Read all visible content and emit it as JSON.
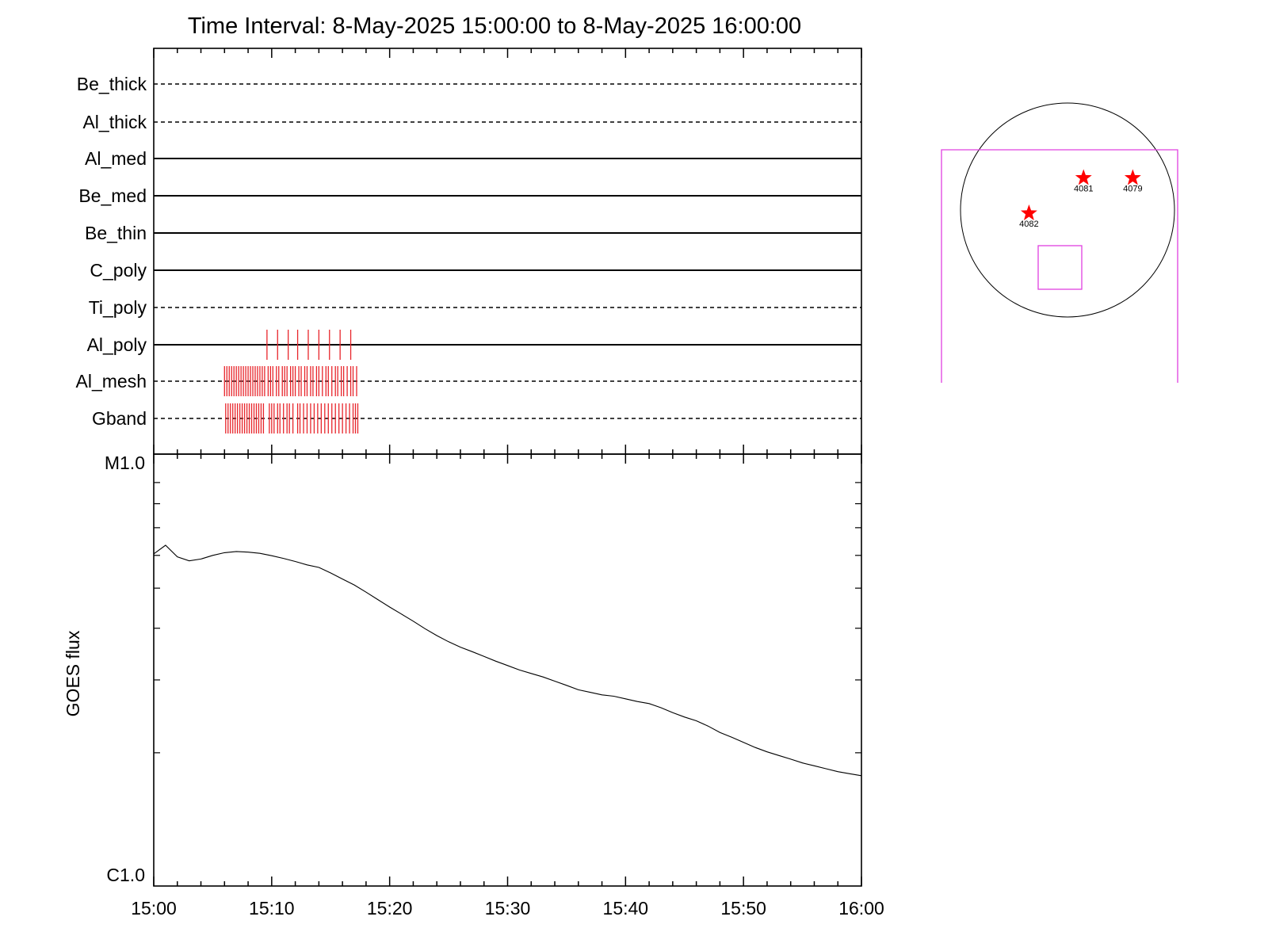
{
  "chart_data": [
    {
      "type": "timeline",
      "title": "Time Interval:  8-May-2025 15:00:00 to  8-May-2025 16:00:00",
      "x_range": [
        "15:00",
        "16:00"
      ],
      "channels": [
        {
          "name": "Be_thick",
          "style": "dashed",
          "events": []
        },
        {
          "name": "Al_thick",
          "style": "dashed",
          "events": []
        },
        {
          "name": "Al_med",
          "style": "solid",
          "events": []
        },
        {
          "name": "Be_med",
          "style": "solid",
          "events": []
        },
        {
          "name": "Be_thin",
          "style": "solid",
          "events": []
        },
        {
          "name": "C_poly",
          "style": "solid",
          "events": []
        },
        {
          "name": "Ti_poly",
          "style": "dashed",
          "events": []
        },
        {
          "name": "Al_poly",
          "style": "solid",
          "events": [
            9.6,
            10.5,
            11.4,
            12.2,
            13.1,
            14.0,
            14.9,
            15.8,
            16.7
          ]
        },
        {
          "name": "Al_mesh",
          "style": "dashed",
          "events": [
            6.0,
            6.2,
            6.4,
            6.6,
            6.8,
            7.0,
            7.2,
            7.4,
            7.6,
            7.8,
            8.0,
            8.2,
            8.4,
            8.6,
            8.8,
            9.0,
            9.2,
            9.4,
            9.7,
            9.9,
            10.1,
            10.4,
            10.6,
            10.9,
            11.1,
            11.3,
            11.6,
            11.8,
            12.0,
            12.3,
            12.5,
            12.8,
            13.0,
            13.3,
            13.5,
            13.8,
            14.0,
            14.3,
            14.6,
            14.8,
            15.1,
            15.4,
            15.6,
            15.9,
            16.1,
            16.4,
            16.7,
            16.9,
            17.2
          ]
        },
        {
          "name": "Gband",
          "style": "dashed",
          "events": [
            6.1,
            6.3,
            6.5,
            6.7,
            6.9,
            7.1,
            7.3,
            7.5,
            7.7,
            7.9,
            8.1,
            8.3,
            8.5,
            8.7,
            8.9,
            9.1,
            9.3,
            9.8,
            10.0,
            10.2,
            10.5,
            10.7,
            11.0,
            11.3,
            11.5,
            11.8,
            12.2,
            12.4,
            12.7,
            13.0,
            13.3,
            13.6,
            13.9,
            14.2,
            14.5,
            14.8,
            15.1,
            15.4,
            15.7,
            16.0,
            16.3,
            16.6,
            16.9,
            17.1,
            17.3
          ]
        }
      ]
    },
    {
      "type": "line",
      "ylabel": "GOES flux",
      "y_scale": "log",
      "ylim": [
        "C1.0",
        "M1.0"
      ],
      "ylim_values": [
        1e-06,
        1e-05
      ],
      "x_range": [
        "15:00",
        "16:00"
      ],
      "x_ticks": [
        "15:00",
        "15:10",
        "15:20",
        "15:30",
        "15:40",
        "15:50",
        "16:00"
      ],
      "series": [
        {
          "x_minutes": [
            0,
            1,
            2,
            3,
            4,
            5,
            6,
            7,
            8,
            9,
            10,
            11,
            12,
            13,
            14,
            15,
            16,
            17,
            18,
            19,
            20,
            21,
            22,
            23,
            24,
            25,
            26,
            27,
            28,
            29,
            30,
            31,
            32,
            33,
            34,
            35,
            36,
            37,
            38,
            39,
            40,
            41,
            42,
            43,
            44,
            45,
            46,
            47,
            48,
            49,
            50,
            51,
            52,
            53,
            54,
            55,
            56,
            57,
            58,
            59,
            60
          ],
          "values": [
            6.05e-06,
            6.35e-06,
            5.95e-06,
            5.82e-06,
            5.88e-06,
            6e-06,
            6.09e-06,
            6.13e-06,
            6.11e-06,
            6.07e-06,
            5.99e-06,
            5.9e-06,
            5.8e-06,
            5.69e-06,
            5.61e-06,
            5.44e-06,
            5.26e-06,
            5.09e-06,
            4.89e-06,
            4.69e-06,
            4.5e-06,
            4.33e-06,
            4.16e-06,
            3.99e-06,
            3.84e-06,
            3.71e-06,
            3.6e-06,
            3.51e-06,
            3.42e-06,
            3.33e-06,
            3.25e-06,
            3.17e-06,
            3.11e-06,
            3.05e-06,
            2.98e-06,
            2.91e-06,
            2.84e-06,
            2.8e-06,
            2.76e-06,
            2.74e-06,
            2.7e-06,
            2.66e-06,
            2.63e-06,
            2.57e-06,
            2.5e-06,
            2.44e-06,
            2.39e-06,
            2.32e-06,
            2.24e-06,
            2.18e-06,
            2.12e-06,
            2.06e-06,
            2.01e-06,
            1.97e-06,
            1.93e-06,
            1.89e-06,
            1.86e-06,
            1.83e-06,
            1.8e-06,
            1.78e-06,
            1.76e-06
          ]
        }
      ]
    },
    {
      "type": "scatter",
      "points": [
        {
          "label": "4081",
          "x": 0.15,
          "y": 0.3
        },
        {
          "label": "4079",
          "x": 0.61,
          "y": 0.3
        },
        {
          "label": "4082",
          "x": -0.36,
          "y": -0.03
        }
      ]
    }
  ]
}
